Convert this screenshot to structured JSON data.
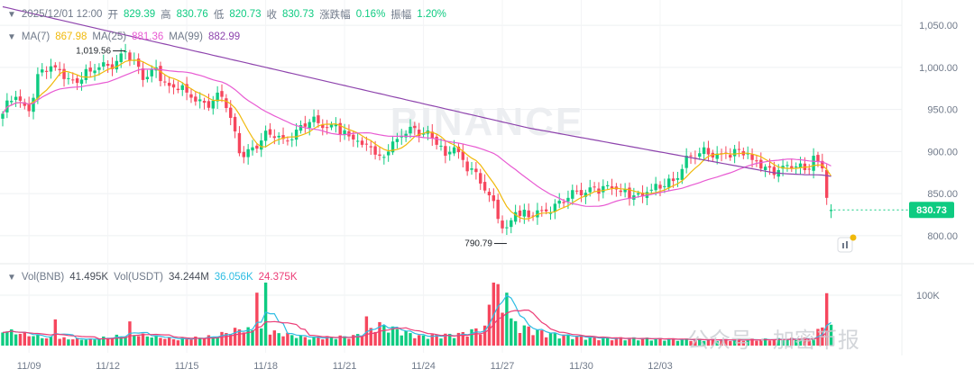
{
  "ohlc_header": {
    "datetime": "2025/12/01 12:00",
    "open_label": "开",
    "open": "829.39",
    "high_label": "高",
    "high": "830.76",
    "low_label": "低",
    "low": "820.73",
    "close_label": "收",
    "close": "830.73",
    "change_label": "涨跌幅",
    "change": "0.16%",
    "amplitude_label": "振幅",
    "amplitude": "1.20%"
  },
  "ma_header": {
    "ma7_label": "MA(7)",
    "ma7": "867.98",
    "ma25_label": "MA(25)",
    "ma25": "881.36",
    "ma99_label": "MA(99)",
    "ma99": "882.99"
  },
  "vol_header": {
    "vol_label": "Vol(BNB)",
    "vol": "41.495K",
    "usdt_label": "Vol(USDT)",
    "usdt": "34.244M",
    "ma_a": "36.056K",
    "ma_b": "24.375K"
  },
  "watermark": "BINANCE",
  "overlay_text": "公众号 · 加密币报",
  "colors": {
    "up": "#0ecb81",
    "down": "#f6465d",
    "ma7": "#f0b90b",
    "ma25": "#e85ad2",
    "ma99": "#8e44ad",
    "vol_ma1": "#2ebde3",
    "vol_ma2": "#ec3d77",
    "grid": "#eef0f2",
    "price_tag": "#0ecb81"
  },
  "chart_data": {
    "type": "candlestick",
    "interval": "4h",
    "x_tick_labels": [
      "11/09",
      "11/12",
      "11/15",
      "11/18",
      "11/21",
      "11/24",
      "11/27",
      "11/30",
      "12/03"
    ],
    "y_tick_labels": [
      "1,050.00",
      "1,000.00",
      "950.00",
      "900.00",
      "850.00",
      "800.00"
    ],
    "ylim": [
      770,
      1080
    ],
    "volume_tick_labels": [
      "100K"
    ],
    "volume_ylim": [
      0,
      150000
    ],
    "last_price": "830.73",
    "high_annotation": "1,019.56",
    "low_annotation": "790.79",
    "anchors": [
      [
        0,
        945
      ],
      [
        3,
        965
      ],
      [
        6,
        948
      ],
      [
        8,
        992
      ],
      [
        12,
        1000
      ],
      [
        16,
        985
      ],
      [
        20,
        995
      ],
      [
        24,
        1002
      ],
      [
        28,
        1019
      ],
      [
        32,
        985
      ],
      [
        35,
        1000
      ],
      [
        38,
        978
      ],
      [
        42,
        970
      ],
      [
        46,
        958
      ],
      [
        50,
        965
      ],
      [
        52,
        940
      ],
      [
        54,
        898
      ],
      [
        57,
        905
      ],
      [
        61,
        920
      ],
      [
        64,
        915
      ],
      [
        67,
        926
      ],
      [
        70,
        935
      ],
      [
        73,
        928
      ],
      [
        76,
        932
      ],
      [
        79,
        918
      ],
      [
        82,
        908
      ],
      [
        84,
        905
      ],
      [
        86,
        895
      ],
      [
        88,
        900
      ],
      [
        90,
        915
      ],
      [
        94,
        928
      ],
      [
        97,
        925
      ],
      [
        99,
        908
      ],
      [
        101,
        895
      ],
      [
        103,
        905
      ],
      [
        105,
        890
      ],
      [
        107,
        880
      ],
      [
        109,
        862
      ],
      [
        111,
        848
      ],
      [
        113,
        820
      ],
      [
        115,
        810
      ],
      [
        117,
        828
      ],
      [
        120,
        822
      ],
      [
        123,
        830
      ],
      [
        126,
        838
      ],
      [
        129,
        845
      ],
      [
        132,
        848
      ],
      [
        135,
        858
      ],
      [
        138,
        860
      ],
      [
        141,
        852
      ],
      [
        144,
        848
      ],
      [
        147,
        852
      ],
      [
        150,
        856
      ],
      [
        153,
        865
      ],
      [
        156,
        895
      ],
      [
        159,
        898
      ],
      [
        162,
        893
      ],
      [
        165,
        898
      ],
      [
        168,
        902
      ],
      [
        171,
        890
      ],
      [
        174,
        882
      ],
      [
        177,
        878
      ],
      [
        180,
        880
      ],
      [
        183,
        878
      ],
      [
        185,
        895
      ],
      [
        187,
        880
      ],
      [
        188,
        845
      ],
      [
        189,
        831
      ]
    ],
    "volume_anchors": [
      [
        0,
        30000
      ],
      [
        10,
        15000
      ],
      [
        20,
        12000
      ],
      [
        30,
        22000
      ],
      [
        40,
        12000
      ],
      [
        48,
        18000
      ],
      [
        54,
        32000
      ],
      [
        60,
        28000
      ],
      [
        70,
        15000
      ],
      [
        80,
        18000
      ],
      [
        86,
        40000
      ],
      [
        95,
        18000
      ],
      [
        104,
        22000
      ],
      [
        110,
        35000
      ],
      [
        112,
        110000
      ],
      [
        114,
        58000
      ],
      [
        118,
        38000
      ],
      [
        125,
        22000
      ],
      [
        135,
        15000
      ],
      [
        145,
        14000
      ],
      [
        155,
        12000
      ],
      [
        165,
        11000
      ],
      [
        175,
        12000
      ],
      [
        185,
        14000
      ],
      [
        187,
        41495
      ],
      [
        188,
        104000
      ],
      [
        189,
        41495
      ]
    ],
    "volume_spikes": [
      [
        12,
        52000
      ],
      [
        29,
        48000
      ],
      [
        58,
        105000
      ],
      [
        60,
        125000
      ],
      [
        83,
        58000
      ],
      [
        112,
        125000
      ],
      [
        113,
        122000
      ],
      [
        115,
        105000
      ]
    ]
  }
}
